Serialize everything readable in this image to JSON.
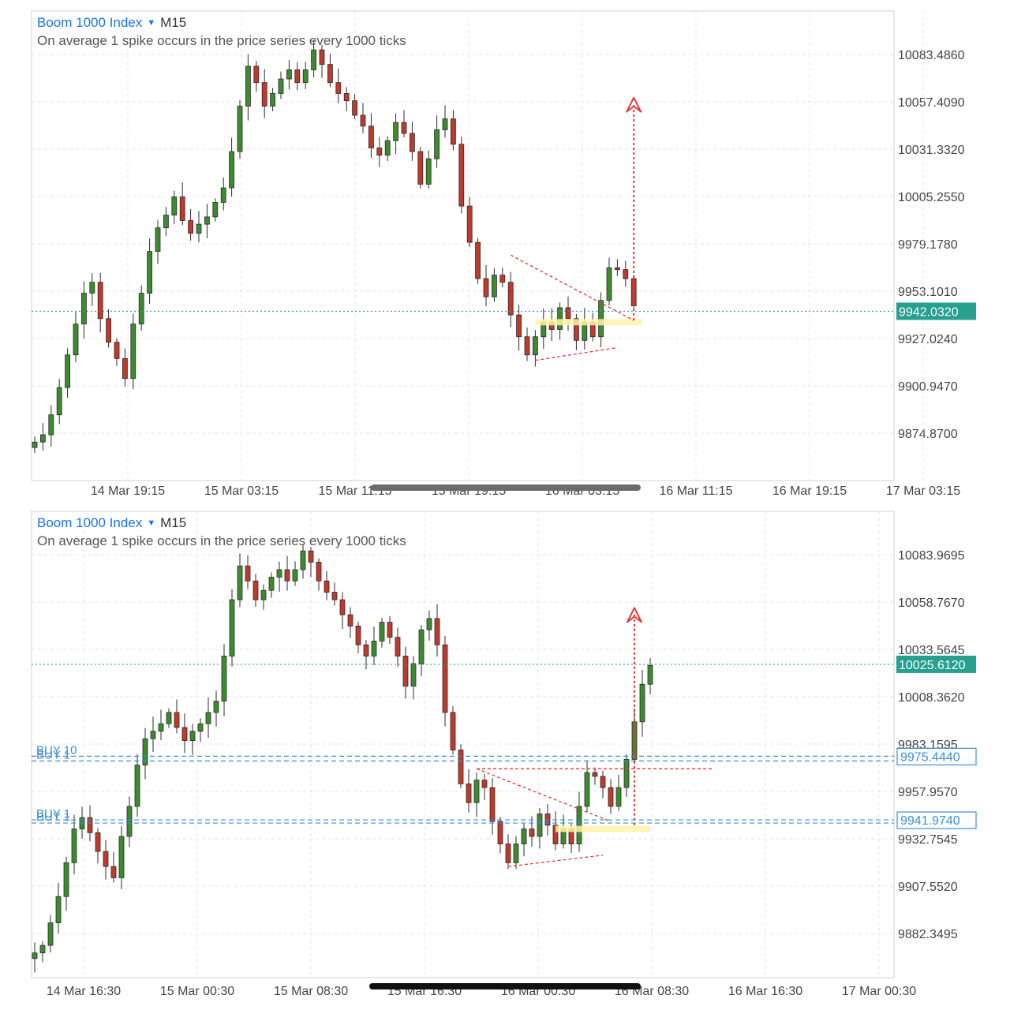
{
  "panels": [
    {
      "symbol": "Boom 1000 Index",
      "timeframe": "M15",
      "description": "On average 1 spike occurs in the price series every 1000 ticks",
      "chart_data": {
        "type": "candlestick",
        "y_ticks": [
          "10083.4860",
          "10057.4090",
          "10031.3320",
          "10005.2550",
          "9979.1780",
          "9953.1010",
          "9927.0240",
          "9900.9470",
          "9874.8700"
        ],
        "x_ticks": [
          "14 Mar 19:15",
          "15 Mar 03:15",
          "15 Mar 11:15",
          "15 Mar 19:15",
          "16 Mar 03:15",
          "16 Mar 11:15",
          "16 Mar 19:15",
          "17 Mar 03:15"
        ],
        "current_price": "9942.0320",
        "ylim": [
          9862,
          10100
        ],
        "close_path": [
          9870,
          9874,
          9885,
          9900,
          9918,
          9935,
          9952,
          9958,
          9938,
          9925,
          9916,
          9905,
          9935,
          9952,
          9975,
          9988,
          9995,
          10005,
          9992,
          9985,
          9990,
          9994,
          10002,
          10010,
          10030,
          10055,
          10077,
          10068,
          10055,
          10062,
          10070,
          10075,
          10068,
          10075,
          10086,
          10078,
          10068,
          10062,
          10058,
          10050,
          10044,
          10032,
          10028,
          10036,
          10046,
          10040,
          10030,
          10012,
          10026,
          10042,
          10048,
          10034,
          10000,
          9980,
          9960,
          9950,
          9962,
          9958,
          9940,
          9928,
          9918,
          9928,
          9936,
          9932,
          9944,
          9938,
          9926,
          9936,
          9928,
          9948,
          9966,
          9965,
          9960,
          9945
        ],
        "pattern_marks": {
          "triangle_upper": [
            [
              58,
              9973
            ],
            [
              73,
              9937
            ]
          ],
          "triangle_lower": [
            [
              61,
              9915
            ],
            [
              71,
              9922
            ]
          ],
          "target_arrow": {
            "x": 73,
            "from": 9937,
            "to": 10058
          },
          "highlight": {
            "x_from": 61,
            "x_to": 74,
            "y": 9936
          }
        }
      }
    },
    {
      "symbol": "Boom 1000 Index",
      "timeframe": "M15",
      "description": "On average 1 spike occurs in the price series every 1000 ticks",
      "chart_data": {
        "type": "candlestick",
        "y_ticks": [
          "10083.9695",
          "10058.7670",
          "10033.5645",
          "10008.3620",
          "9983.1595",
          "9957.9570",
          "9932.7545",
          "9907.5520",
          "9882.3495"
        ],
        "x_ticks": [
          "14 Mar 16:30",
          "15 Mar 00:30",
          "15 Mar 08:30",
          "15 Mar 16:30",
          "16 Mar 00:30",
          "16 Mar 08:30",
          "16 Mar 16:30",
          "17 Mar 00:30"
        ],
        "current_price": "10025.6120",
        "order_lines": [
          {
            "label": "BUY 10",
            "price": "9975.4440"
          },
          {
            "label": "BUY 1",
            "price": ""
          },
          {
            "label": "BUY 1",
            "price": "9941.9740"
          },
          {
            "label": "BUY 1",
            "price": ""
          }
        ],
        "ylim": [
          9866,
          10100
        ],
        "close_path": [
          9872,
          9876,
          9888,
          9902,
          9920,
          9938,
          9944,
          9936,
          9926,
          9918,
          9912,
          9934,
          9950,
          9972,
          9986,
          9990,
          9994,
          10000,
          9992,
          9985,
          9990,
          9994,
          10000,
          10006,
          10030,
          10060,
          10078,
          10070,
          10060,
          10065,
          10072,
          10076,
          10070,
          10076,
          10086,
          10080,
          10070,
          10064,
          10060,
          10052,
          10046,
          10036,
          10030,
          10038,
          10048,
          10040,
          10030,
          10014,
          10026,
          10044,
          10050,
          10036,
          10000,
          9980,
          9962,
          9952,
          9964,
          9960,
          9942,
          9930,
          9920,
          9930,
          9938,
          9934,
          9946,
          9940,
          9930,
          9938,
          9930,
          9950,
          9968,
          9966,
          9960,
          9950,
          9960,
          9975,
          9995,
          10015,
          10025
        ],
        "pattern_marks": {
          "triangle_upper": [
            [
              56,
              9970
            ],
            [
              73,
              9942
            ]
          ],
          "triangle_lower": [
            [
              60,
              9918
            ],
            [
              72,
              9924
            ]
          ],
          "resistance_line": {
            "x_from": 56,
            "x_to": 86,
            "y": 9970
          },
          "target_arrow": {
            "x": 76,
            "from": 9940,
            "to": 10054
          },
          "highlight": {
            "x_from": 66,
            "x_to": 78,
            "y": 9938
          }
        }
      }
    }
  ]
}
